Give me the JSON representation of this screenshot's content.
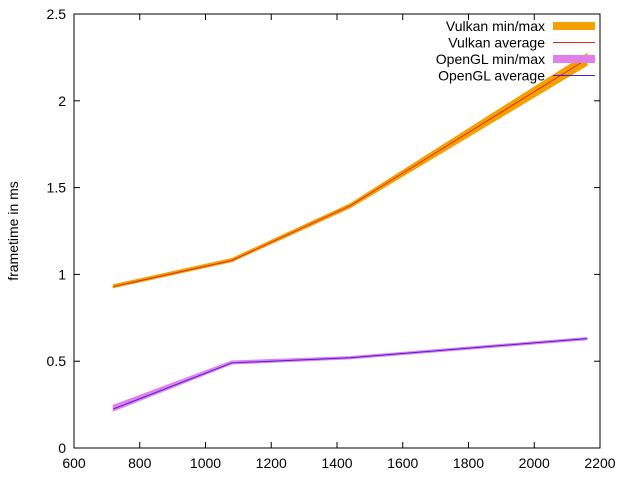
{
  "chart_data": {
    "type": "line",
    "xlabel": "",
    "ylabel": "frametime in ms",
    "xlim": [
      600,
      2200
    ],
    "ylim": [
      0,
      2.5
    ],
    "xticks": [
      600,
      800,
      1000,
      1200,
      1400,
      1600,
      1800,
      2000,
      2200
    ],
    "yticks": [
      0,
      0.5,
      1,
      1.5,
      2,
      2.5
    ],
    "ytick_labels": [
      "0",
      "0.5",
      "1",
      "1.5",
      "2",
      "2.5"
    ],
    "grid": false,
    "legend_position": "top-right",
    "x": [
      720,
      1080,
      1440,
      2160
    ],
    "series": [
      {
        "name": "Vulkan min/max",
        "kind": "band",
        "color": "#f5a000",
        "min": [
          0.925,
          1.075,
          1.385,
          2.205
        ],
        "max": [
          0.94,
          1.09,
          1.405,
          2.27
        ]
      },
      {
        "name": "Vulkan average",
        "kind": "line",
        "color": "#d9301a",
        "values": [
          0.93,
          1.08,
          1.395,
          2.24
        ]
      },
      {
        "name": "OpenGL min/max",
        "kind": "band",
        "color": "#e080e8",
        "min": [
          0.215,
          0.485,
          0.515,
          0.625
        ],
        "max": [
          0.245,
          0.5,
          0.525,
          0.635
        ]
      },
      {
        "name": "OpenGL average",
        "kind": "line",
        "color": "#4b1fd8",
        "values": [
          0.225,
          0.49,
          0.52,
          0.63
        ]
      }
    ]
  }
}
